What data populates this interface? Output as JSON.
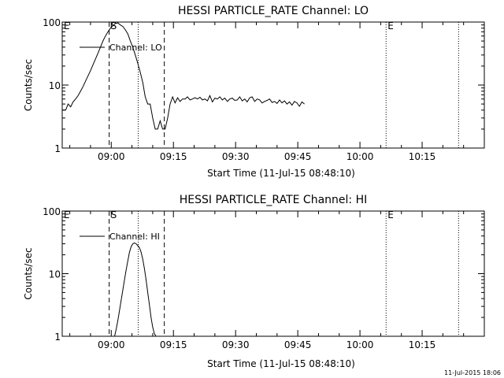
{
  "chart_data": [
    {
      "type": "line",
      "title": "HESSI PARTICLE_RATE Channel: LO",
      "xlabel": "Start Time (11-Jul-15 08:48:10)",
      "ylabel": "Counts/sec",
      "x_tick_labels": [
        "09:00",
        "09:15",
        "09:30",
        "09:45",
        "10:00",
        "10:15"
      ],
      "x_ticks_min": [
        540,
        555,
        570,
        585,
        600,
        615
      ],
      "xlim_min": [
        528.17,
        630
      ],
      "y_scale": "log",
      "ylim": [
        1,
        100
      ],
      "y_tick_labels": [
        "1",
        "10",
        "100"
      ],
      "y_tick_values": [
        1,
        10,
        100
      ],
      "legend": {
        "label": "Channel: LO",
        "position": "top-left"
      },
      "vlines": [
        {
          "x_min": 539.5,
          "style": "dashed",
          "label": "S"
        },
        {
          "x_min": 546.5,
          "style": "dotted",
          "label": ""
        },
        {
          "x_min": 552.8,
          "style": "dashed",
          "label": ""
        },
        {
          "x_min": 606.3,
          "style": "dotted",
          "label": "E"
        },
        {
          "x_min": 623.8,
          "style": "dotted",
          "label": ""
        }
      ],
      "edge_label": "E",
      "series": [
        {
          "name": "Channel: LO",
          "x_min": [
            528.2,
            529.0,
            529.6,
            530.2,
            530.8,
            531.4,
            532.0,
            532.6,
            533.2,
            533.8,
            534.4,
            535.0,
            535.6,
            536.2,
            536.8,
            537.4,
            538.0,
            538.6,
            539.2,
            539.8,
            540.4,
            541.0,
            541.6,
            542.2,
            542.8,
            543.4,
            544.0,
            544.6,
            545.2,
            545.8,
            546.4,
            547.0,
            547.6,
            548.2,
            548.8,
            549.4,
            550.0,
            550.6,
            551.2,
            551.8,
            552.4,
            553.0,
            553.6,
            554.2,
            554.8,
            555.4,
            556.0,
            556.6,
            557.2,
            557.8,
            558.4,
            559.0,
            559.6,
            560.2,
            560.8,
            561.4,
            562.0,
            562.6,
            563.2,
            563.8,
            564.4,
            565.0,
            565.6,
            566.2,
            566.8,
            567.4,
            568.0,
            568.6,
            569.2,
            569.8,
            570.4,
            571.0,
            571.6,
            572.2,
            572.8,
            573.4,
            574.0,
            574.6,
            575.2,
            575.8,
            576.4,
            577.0,
            577.6,
            578.2,
            578.8,
            579.4,
            580.0,
            580.6,
            581.2,
            581.8,
            582.4,
            583.0,
            583.6,
            584.2,
            584.8,
            585.4,
            586.0,
            586.6
          ],
          "y": [
            4.0,
            4.0,
            5.0,
            4.5,
            5.4,
            6.0,
            6.8,
            8.0,
            9.5,
            11.5,
            14.0,
            17.0,
            21.0,
            26.0,
            32.0,
            40.0,
            50.0,
            60.0,
            70.0,
            80.0,
            88.0,
            95.0,
            97.0,
            90.0,
            85.0,
            75.0,
            65.0,
            50.0,
            40.0,
            30.0,
            22.0,
            16.0,
            11.0,
            6.5,
            5.0,
            5.0,
            3.0,
            2.0,
            2.0,
            2.7,
            2.0,
            2.0,
            3.0,
            5.0,
            6.5,
            5.2,
            6.3,
            5.5,
            6.0,
            6.0,
            6.5,
            5.8,
            6.0,
            6.3,
            6.0,
            6.4,
            5.8,
            6.0,
            5.6,
            6.8,
            5.4,
            6.2,
            6.0,
            6.5,
            5.8,
            6.2,
            5.5,
            6.0,
            6.2,
            5.7,
            5.8,
            6.5,
            5.6,
            6.0,
            5.4,
            6.3,
            6.5,
            5.5,
            6.0,
            5.8,
            5.2,
            5.5,
            5.7,
            6.0,
            5.3,
            5.5,
            5.1,
            5.8,
            5.2,
            5.6,
            5.0,
            5.4,
            4.8,
            5.5,
            5.2,
            4.6,
            5.4,
            5.0
          ]
        }
      ]
    },
    {
      "type": "line",
      "title": "HESSI PARTICLE_RATE Channel: HI",
      "xlabel": "Start Time (11-Jul-15 08:48:10)",
      "ylabel": "Counts/sec",
      "x_tick_labels": [
        "09:00",
        "09:15",
        "09:30",
        "09:45",
        "10:00",
        "10:15"
      ],
      "x_ticks_min": [
        540,
        555,
        570,
        585,
        600,
        615
      ],
      "xlim_min": [
        528.17,
        630
      ],
      "y_scale": "log",
      "ylim": [
        1,
        100
      ],
      "y_tick_labels": [
        "1",
        "10",
        "100"
      ],
      "y_tick_values": [
        1,
        10,
        100
      ],
      "legend": {
        "label": "Channel: HI",
        "position": "top-left"
      },
      "vlines": [
        {
          "x_min": 539.5,
          "style": "dashed",
          "label": "S"
        },
        {
          "x_min": 546.5,
          "style": "dotted",
          "label": ""
        },
        {
          "x_min": 552.8,
          "style": "dashed",
          "label": ""
        },
        {
          "x_min": 606.3,
          "style": "dotted",
          "label": "E"
        },
        {
          "x_min": 623.8,
          "style": "dotted",
          "label": ""
        }
      ],
      "edge_label": "E",
      "series": [
        {
          "name": "Channel: HI",
          "x_min": [
            540.8,
            541.2,
            541.6,
            542.0,
            542.4,
            542.8,
            543.2,
            543.6,
            544.0,
            544.4,
            544.8,
            545.2,
            545.6,
            546.0,
            546.4,
            546.8,
            547.2,
            547.6,
            548.0,
            548.4,
            548.8,
            549.2,
            549.6,
            550.0,
            550.4,
            550.8
          ],
          "y": [
            1.0,
            1.3,
            1.8,
            2.6,
            3.8,
            5.5,
            8.0,
            11.5,
            16.0,
            22.0,
            27.0,
            30.0,
            31.0,
            30.0,
            28.0,
            26.0,
            22.0,
            17.0,
            12.0,
            8.0,
            5.0,
            3.2,
            2.0,
            1.4,
            1.1,
            1.0
          ]
        }
      ]
    }
  ],
  "timestamp": "11-Jul-2015 18:06"
}
